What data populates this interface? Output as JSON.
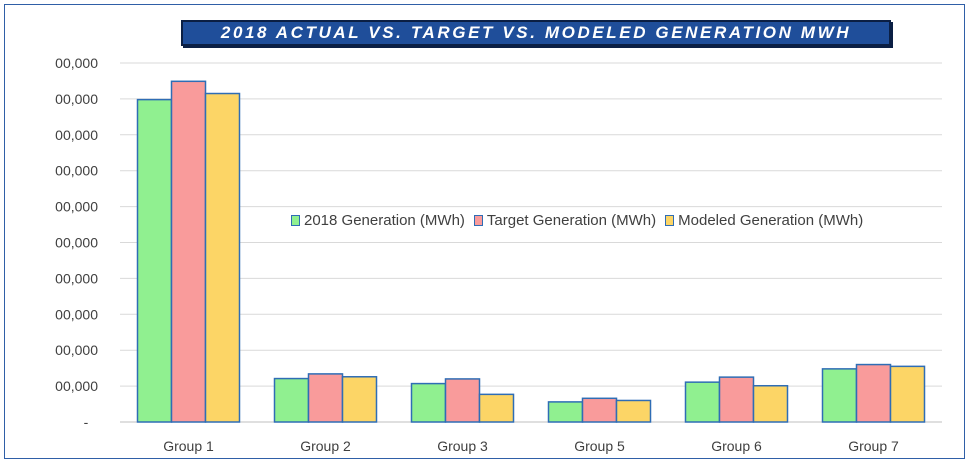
{
  "chart_data": {
    "type": "bar",
    "title": "2018 ACTUAL VS. TARGET VS. MODELED GENERATION MWH",
    "xlabel": "",
    "ylabel": "",
    "categories": [
      "Group 1",
      "Group 2",
      "Group 3",
      "Group 5",
      "Group 6",
      "Group 7"
    ],
    "series": [
      {
        "name": "2018 Generation (MWh)",
        "color": "#90f090",
        "values": [
          898000,
          121000,
          107000,
          56000,
          111000,
          148000
        ]
      },
      {
        "name": "Target Generation (MWh)",
        "color": "#f99b9b",
        "values": [
          949000,
          134000,
          120000,
          66000,
          125000,
          160000
        ]
      },
      {
        "name": "Modeled Generation (MWh)",
        "color": "#fcd566",
        "values": [
          915000,
          126000,
          77000,
          60000,
          101000,
          155000
        ]
      }
    ],
    "ylim": [
      0,
      1000000
    ],
    "yticks": [
      0,
      100000,
      200000,
      300000,
      400000,
      500000,
      600000,
      700000,
      800000,
      900000,
      1000000
    ],
    "ytick_labels": [
      "-",
      "00,000",
      "00,000",
      "00,000",
      "00,000",
      "00,000",
      "00,000",
      "00,000",
      "00,000",
      "00,000",
      "00,000"
    ],
    "bar_border_color": "#2f6db5",
    "grid": true,
    "legend_position": "center-right"
  }
}
